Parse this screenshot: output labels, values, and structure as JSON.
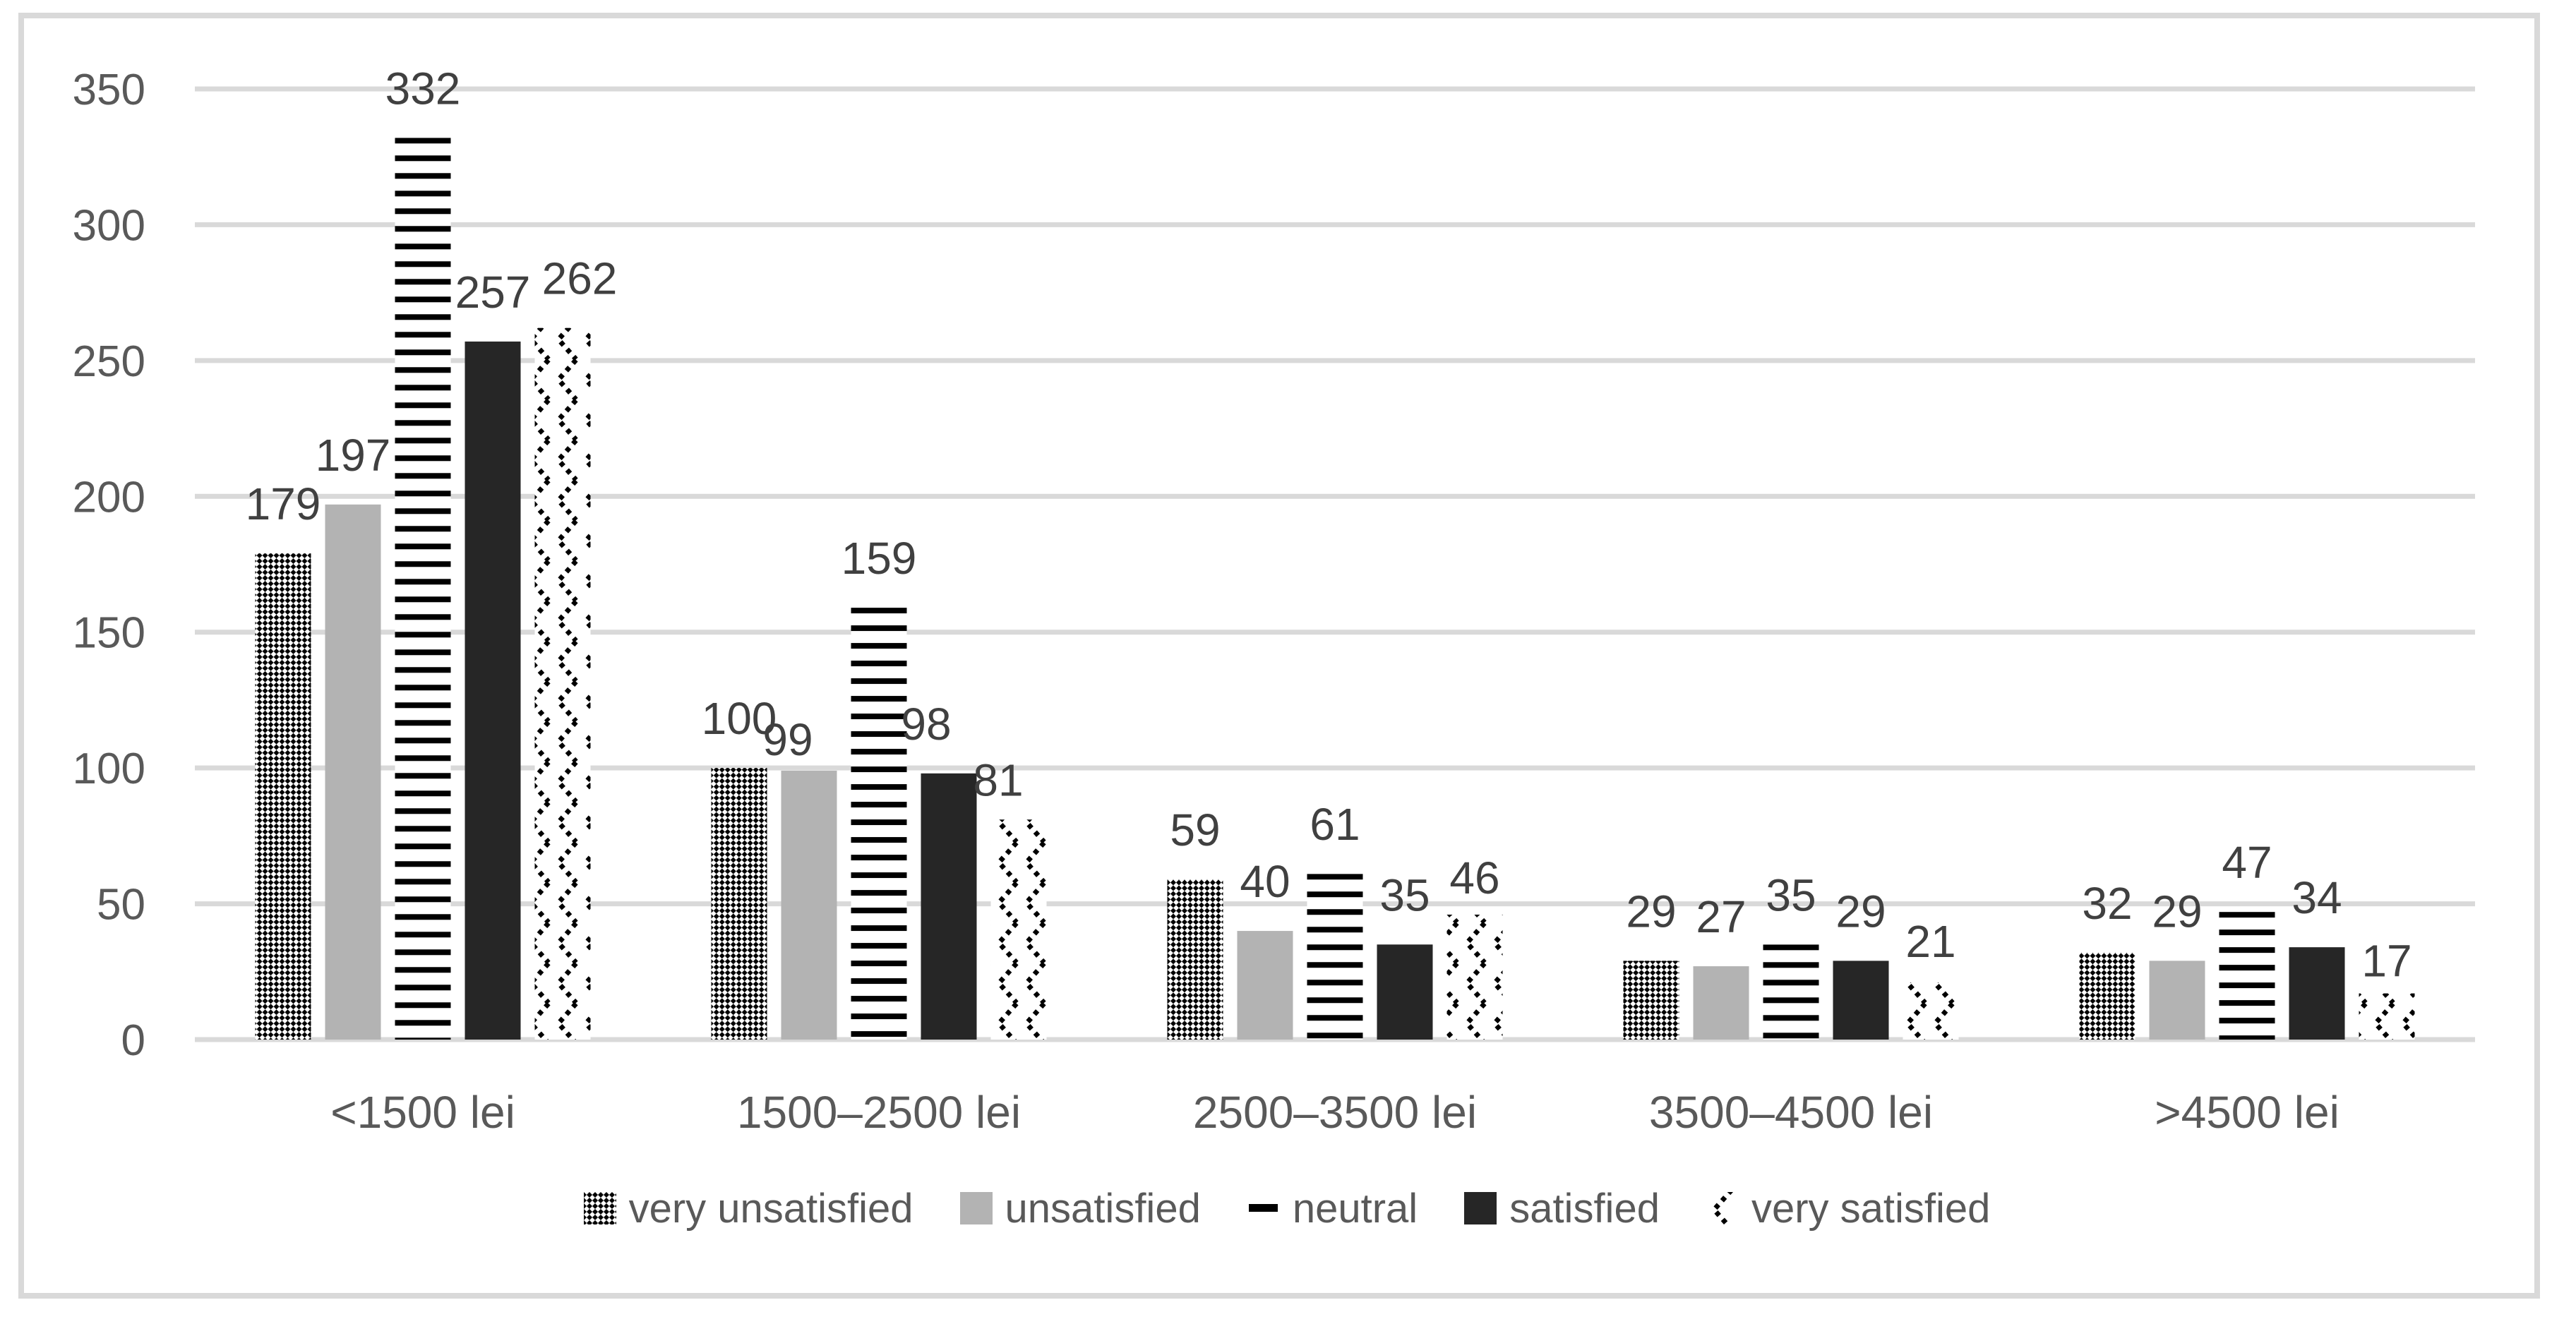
{
  "chart_data": {
    "type": "bar",
    "title": "",
    "xlabel": "",
    "ylabel": "",
    "categories": [
      "<1500 lei",
      "1500–2500 lei",
      "2500–3500 lei",
      "3500–4500 lei",
      ">4500 lei"
    ],
    "series": [
      {
        "name": "very unsatisfied",
        "pattern": "diagonal-checker",
        "values": [
          179,
          100,
          59,
          29,
          32
        ]
      },
      {
        "name": "unsatisfied",
        "pattern": "solid-light-gray",
        "color": "#b3b3b3",
        "values": [
          197,
          99,
          40,
          27,
          29
        ]
      },
      {
        "name": "neutral",
        "pattern": "horizontal-stripes",
        "values": [
          332,
          159,
          61,
          35,
          47
        ]
      },
      {
        "name": "satisfied",
        "pattern": "solid-near-black",
        "color": "#262626",
        "values": [
          257,
          98,
          35,
          29,
          34
        ]
      },
      {
        "name": "very satisfied",
        "pattern": "dotted-zigzag",
        "values": [
          262,
          81,
          46,
          21,
          17
        ]
      }
    ],
    "ylim": [
      0,
      350
    ],
    "ytick_interval": 50,
    "yticks": [
      "0",
      "50",
      "100",
      "150",
      "200",
      "250",
      "300",
      "350"
    ],
    "grid": "horizontal",
    "legend_position": "bottom",
    "data_labels": "outside-end",
    "colors": {
      "background": "#ffffff",
      "frame_border": "#d9d9d9",
      "gridline": "#d9d9d9",
      "axis_text": "#595959",
      "data_label_text": "#404040",
      "legend_text": "#595959",
      "pattern_ink": "#000000",
      "unsatisfied_bar": "#b3b3b3",
      "satisfied_bar": "#262626"
    }
  }
}
